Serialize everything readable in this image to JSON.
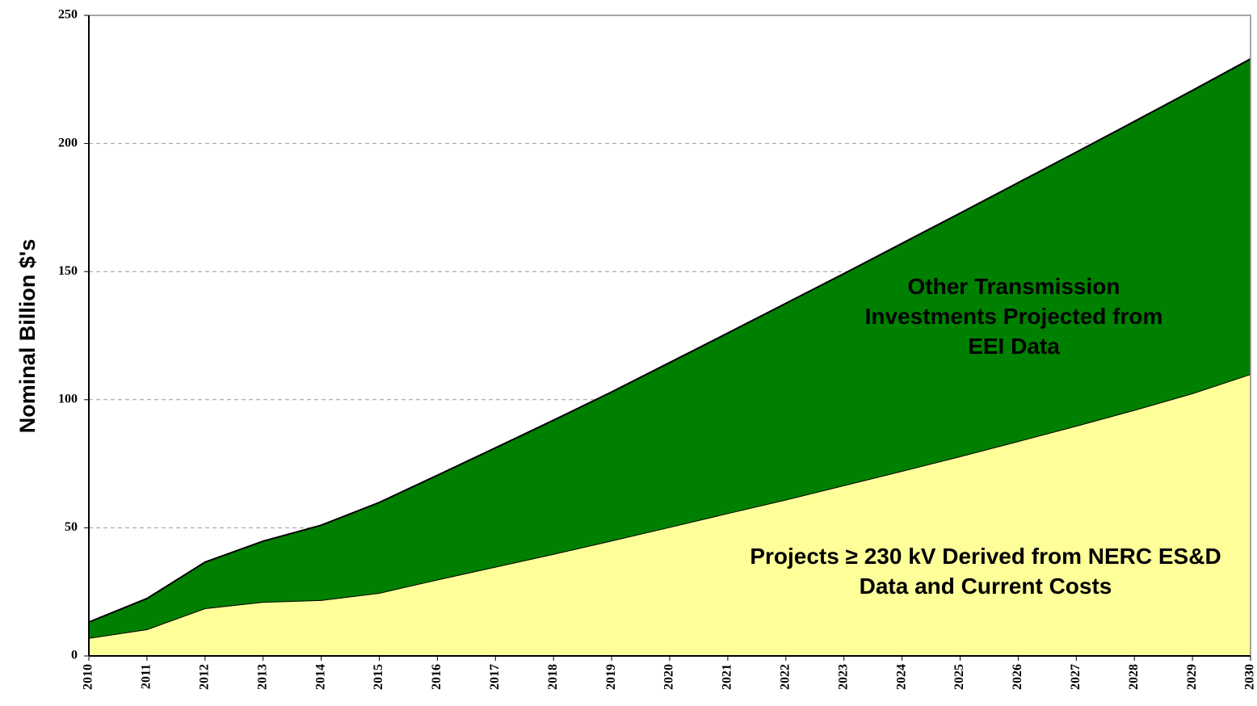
{
  "chart_data": {
    "type": "stacked_area",
    "ylabel": "Nominal Billion $'s",
    "categories": [
      "2010",
      "2011",
      "2012",
      "2013",
      "2014",
      "2015",
      "2016",
      "2017",
      "2018",
      "2019",
      "2020",
      "2021",
      "2022",
      "2023",
      "2024",
      "2025",
      "2026",
      "2027",
      "2028",
      "2029",
      "2030"
    ],
    "series": [
      {
        "name": "Projects ≥ 230 kV Derived from NERC ES&D Data and Current Costs",
        "color": "#ffff99",
        "values": [
          7,
          10.4,
          18.6,
          21.1,
          21.8,
          24.6,
          29.8,
          34.8,
          39.8,
          45,
          50.3,
          55.7,
          61,
          66.6,
          72.2,
          77.9,
          83.8,
          89.8,
          96,
          102.5,
          110
        ]
      },
      {
        "name": "Other Transmission Investments Projected from EEI Data",
        "color": "#008000",
        "values": [
          6.2,
          12,
          18,
          23.7,
          29.2,
          35.3,
          40.7,
          46.4,
          52.2,
          58,
          64.2,
          70.3,
          76.6,
          82.6,
          88.8,
          94.9,
          100.9,
          106.8,
          112.6,
          118.2,
          123
        ]
      }
    ],
    "ylim": [
      0,
      250
    ],
    "yticks": [
      0,
      50,
      100,
      150,
      200,
      250
    ],
    "grid": true
  }
}
